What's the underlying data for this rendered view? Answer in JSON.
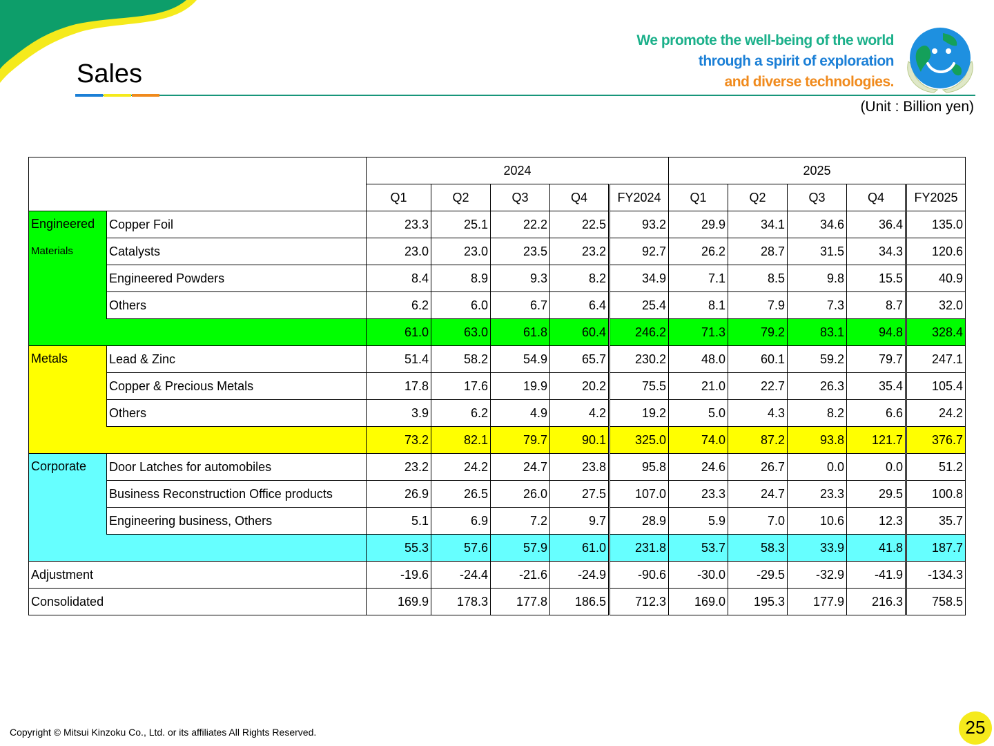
{
  "header": {
    "title": "Sales",
    "slogan": [
      "We promote the well-being of the world",
      "through a spirit of exploration",
      "and diverse technologies."
    ],
    "unit": "(Unit : Billion yen)"
  },
  "table": {
    "year_headers": [
      "2024",
      "2025"
    ],
    "period_headers": [
      "Q1",
      "Q2",
      "Q3",
      "Q4",
      "FY2024",
      "Q1",
      "Q2",
      "Q3",
      "Q4",
      "FY2025"
    ],
    "segments": {
      "engineered": {
        "name_line1": "Engineered",
        "name_line2": "Materials",
        "rows": [
          {
            "label": "Copper Foil",
            "values": [
              "23.3",
              "25.1",
              "22.2",
              "22.5",
              "93.2",
              "29.9",
              "34.1",
              "34.6",
              "36.4",
              "135.0"
            ]
          },
          {
            "label": "Catalysts",
            "values": [
              "23.0",
              "23.0",
              "23.5",
              "23.2",
              "92.7",
              "26.2",
              "28.7",
              "31.5",
              "34.3",
              "120.6"
            ]
          },
          {
            "label": "Engineered Powders",
            "values": [
              "8.4",
              "8.9",
              "9.3",
              "8.2",
              "34.9",
              "7.1",
              "8.5",
              "9.8",
              "15.5",
              "40.9"
            ]
          },
          {
            "label": "Others",
            "values": [
              "6.2",
              "6.0",
              "6.7",
              "6.4",
              "25.4",
              "8.1",
              "7.9",
              "7.3",
              "8.7",
              "32.0"
            ]
          }
        ],
        "subtotal": [
          "61.0",
          "63.0",
          "61.8",
          "60.4",
          "246.2",
          "71.3",
          "79.2",
          "83.1",
          "94.8",
          "328.4"
        ]
      },
      "metals": {
        "name": "Metals",
        "rows": [
          {
            "label": "Lead & Zinc",
            "values": [
              "51.4",
              "58.2",
              "54.9",
              "65.7",
              "230.2",
              "48.0",
              "60.1",
              "59.2",
              "79.7",
              "247.1"
            ]
          },
          {
            "label": "Copper & Precious Metals",
            "values": [
              "17.8",
              "17.6",
              "19.9",
              "20.2",
              "75.5",
              "21.0",
              "22.7",
              "26.3",
              "35.4",
              "105.4"
            ]
          },
          {
            "label": "Others",
            "values": [
              "3.9",
              "6.2",
              "4.9",
              "4.2",
              "19.2",
              "5.0",
              "4.3",
              "8.2",
              "6.6",
              "24.2"
            ]
          }
        ],
        "subtotal": [
          "73.2",
          "82.1",
          "79.7",
          "90.1",
          "325.0",
          "74.0",
          "87.2",
          "93.8",
          "121.7",
          "376.7"
        ]
      },
      "corporate": {
        "name": "Corporate",
        "rows": [
          {
            "label": "Door Latches for automobiles",
            "values": [
              "23.2",
              "24.2",
              "24.7",
              "23.8",
              "95.8",
              "24.6",
              "26.7",
              "0.0",
              "0.0",
              "51.2"
            ]
          },
          {
            "label": "Business Reconstruction Office products",
            "values": [
              "26.9",
              "26.5",
              "26.0",
              "27.5",
              "107.0",
              "23.3",
              "24.7",
              "23.3",
              "29.5",
              "100.8"
            ]
          },
          {
            "label": "Engineering business, Others",
            "values": [
              "5.1",
              "6.9",
              "7.2",
              "9.7",
              "28.9",
              "5.9",
              "7.0",
              "10.6",
              "12.3",
              "35.7"
            ]
          }
        ],
        "subtotal": [
          "55.3",
          "57.6",
          "57.9",
          "61.0",
          "231.8",
          "53.7",
          "58.3",
          "33.9",
          "41.8",
          "187.7"
        ]
      }
    },
    "adjustment": {
      "label": "Adjustment",
      "values": [
        "-19.6",
        "-24.4",
        "-21.6",
        "-24.9",
        "-90.6",
        "-30.0",
        "-29.5",
        "-32.9",
        "-41.9",
        "-134.3"
      ]
    },
    "consolidated": {
      "label": "Consolidated",
      "values": [
        "169.9",
        "178.3",
        "177.8",
        "186.5",
        "712.3",
        "169.0",
        "195.3",
        "177.9",
        "216.3",
        "758.5"
      ]
    }
  },
  "footer": {
    "copyright": "Copyright © Mitsui Kinzoku Co., Ltd. or its affiliates All Rights Reserved.",
    "page_number": "25"
  },
  "colors": {
    "engineered": "#00ff00",
    "metals": "#ffff00",
    "corporate": "#66ffff",
    "accent_green": "#17967a",
    "accent_yellow": "#f5ea1c"
  }
}
